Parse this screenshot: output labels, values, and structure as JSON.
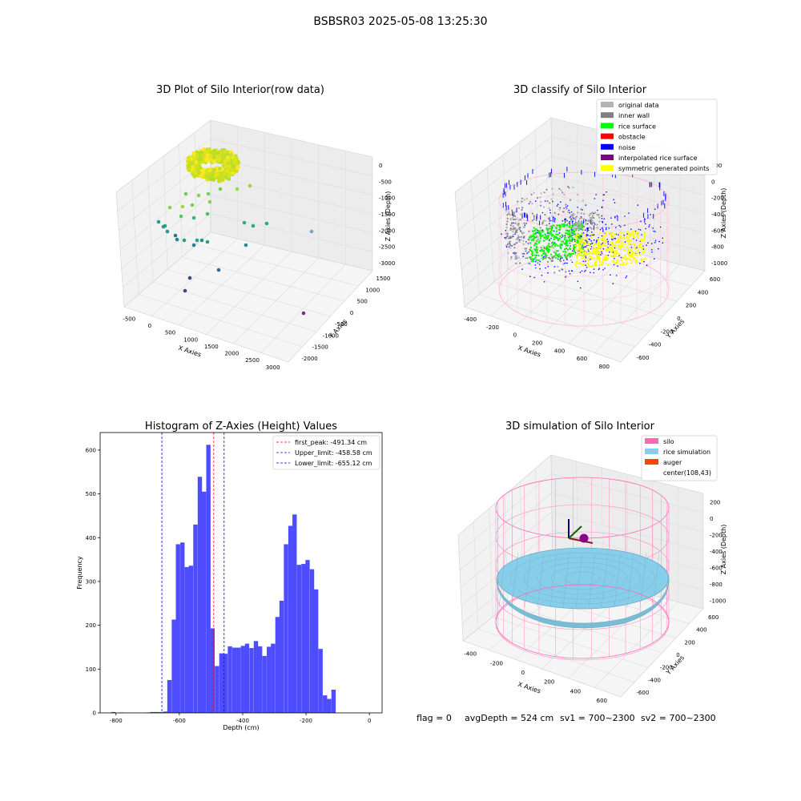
{
  "figure": {
    "title": "BSBSR03 2025-05-08 13:25:30",
    "status_line": {
      "flag": "flag = 0",
      "avg_depth": "avgDepth = 524 cm",
      "sv1": "sv1 = 700~2300",
      "sv2": "sv2 = 700~2300"
    }
  },
  "chart_data": [
    {
      "type": "scatter",
      "projection": "3d",
      "title": "3D Plot of Silo Interior(row data)",
      "xlabel": "X Axies",
      "ylabel": "Y Axies",
      "zlabel": "Z Axies (Depth)",
      "x_ticks": [
        "-500",
        "0",
        "500",
        "1000",
        "1500",
        "2000",
        "2500",
        "3000"
      ],
      "y_ticks": [
        "1500",
        "1000",
        "500",
        "0",
        "-500",
        "-1000",
        "-1500",
        "-2000"
      ],
      "z_ticks": [
        "0",
        "-500",
        "-1000",
        "-1500",
        "-2000",
        "-2500",
        "-3000"
      ],
      "colormap": "viridis"
    },
    {
      "type": "scatter",
      "projection": "3d",
      "title": "3D classify of Silo Interior",
      "xlabel": "X Axies",
      "ylabel": "Y Axies",
      "zlabel": "Z Axies (Depth)",
      "x_ticks": [
        "-400",
        "-200",
        "0",
        "200",
        "400",
        "600",
        "800"
      ],
      "y_ticks": [
        "600",
        "400",
        "200",
        "0",
        "-200",
        "-400",
        "-600"
      ],
      "z_ticks": [
        "200",
        "0",
        "-200",
        "-400",
        "-600",
        "-800",
        "-1000"
      ],
      "legend_position": "top-right",
      "legend": [
        {
          "label": "original data",
          "color": "#b3b3b3"
        },
        {
          "label": "inner wall",
          "color": "#808080"
        },
        {
          "label": "rice surface",
          "color": "#00ff00"
        },
        {
          "label": "obstacle",
          "color": "#ff0000"
        },
        {
          "label": "noise",
          "color": "#0000ff"
        },
        {
          "label": "interpolated rice surface",
          "color": "#800080"
        },
        {
          "label": "symmetric generated points",
          "color": "#ffff00"
        }
      ]
    },
    {
      "type": "bar",
      "title": "Histogram of Z-Axies (Height) Values",
      "xlabel": "Depth (cm)",
      "ylabel": "Frequency",
      "xlim": [
        -850,
        40
      ],
      "ylim": [
        0,
        640
      ],
      "x_ticks": [
        -800,
        -600,
        -400,
        -200,
        0
      ],
      "y_ticks": [
        0,
        100,
        200,
        300,
        400,
        500,
        600
      ],
      "bar_color": "#4d4dff",
      "bin_width": 13.6,
      "bins": [
        {
          "x": -815,
          "v": 2
        },
        {
          "x": -788,
          "v": 1
        },
        {
          "x": -706,
          "v": 1
        },
        {
          "x": -692,
          "v": 2
        },
        {
          "x": -679,
          "v": 2
        },
        {
          "x": -665,
          "v": 2
        },
        {
          "x": -651,
          "v": 3
        },
        {
          "x": -638,
          "v": 75
        },
        {
          "x": -624,
          "v": 213
        },
        {
          "x": -611,
          "v": 385
        },
        {
          "x": -597,
          "v": 389
        },
        {
          "x": -583,
          "v": 333
        },
        {
          "x": -570,
          "v": 336
        },
        {
          "x": -556,
          "v": 430
        },
        {
          "x": -542,
          "v": 539
        },
        {
          "x": -529,
          "v": 505
        },
        {
          "x": -515,
          "v": 612
        },
        {
          "x": -502,
          "v": 193
        },
        {
          "x": -488,
          "v": 107
        },
        {
          "x": -474,
          "v": 136
        },
        {
          "x": -461,
          "v": 135
        },
        {
          "x": -447,
          "v": 152
        },
        {
          "x": -433,
          "v": 149
        },
        {
          "x": -420,
          "v": 149
        },
        {
          "x": -406,
          "v": 153
        },
        {
          "x": -393,
          "v": 158
        },
        {
          "x": -379,
          "v": 148
        },
        {
          "x": -365,
          "v": 164
        },
        {
          "x": -352,
          "v": 152
        },
        {
          "x": -338,
          "v": 130
        },
        {
          "x": -324,
          "v": 151
        },
        {
          "x": -311,
          "v": 158
        },
        {
          "x": -297,
          "v": 219
        },
        {
          "x": -284,
          "v": 256
        },
        {
          "x": -270,
          "v": 385
        },
        {
          "x": -256,
          "v": 427
        },
        {
          "x": -243,
          "v": 453
        },
        {
          "x": -229,
          "v": 338
        },
        {
          "x": -215,
          "v": 340
        },
        {
          "x": -202,
          "v": 349
        },
        {
          "x": -188,
          "v": 328
        },
        {
          "x": -175,
          "v": 282
        },
        {
          "x": -161,
          "v": 146
        },
        {
          "x": -147,
          "v": 40
        },
        {
          "x": -134,
          "v": 32
        },
        {
          "x": -120,
          "v": 53
        }
      ],
      "vlines": [
        {
          "x": -491.34,
          "color": "#ff0000",
          "label": "first_peak: -491.34 cm"
        },
        {
          "x": -458.58,
          "color": "#0000ff",
          "label": "Upper_limit: -458.58 cm"
        },
        {
          "x": -655.12,
          "color": "#0000ff",
          "label": "Lower_limit: -655.12 cm"
        }
      ],
      "legend_position": "top-right"
    },
    {
      "type": "surface",
      "projection": "3d",
      "title": "3D simulation of Silo Interior",
      "xlabel": "X Axies",
      "ylabel": "Y Axies",
      "zlabel": "Z Axies (Depth)",
      "x_ticks": [
        "-400",
        "-200",
        "0",
        "200",
        "400",
        "600"
      ],
      "y_ticks": [
        "600",
        "400",
        "200",
        "0",
        "-200",
        "-400",
        "-600"
      ],
      "z_ticks": [
        "200",
        "0",
        "-200",
        "-400",
        "-600",
        "-800",
        "-1000"
      ],
      "legend_position": "top-right",
      "legend": [
        {
          "label": "silo",
          "color": "#ff69b4"
        },
        {
          "label": "rice simulation",
          "color": "#87ceeb"
        },
        {
          "label": "auger",
          "color": "#ff4500"
        },
        {
          "label": "center(108,43)",
          "color": ""
        }
      ]
    }
  ]
}
